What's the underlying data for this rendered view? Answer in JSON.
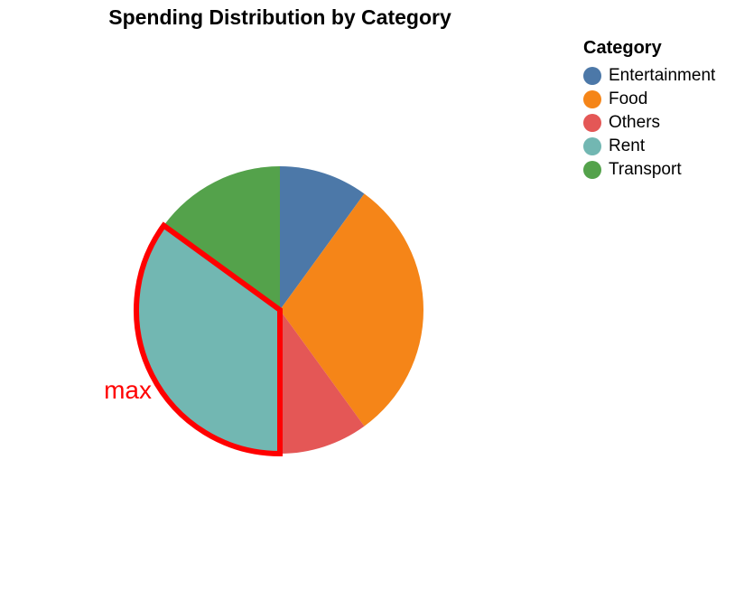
{
  "chart_data": {
    "type": "pie",
    "title": "Spending Distribution by Category",
    "legend_title": "Category",
    "legend_position": "top-right",
    "categories": [
      "Entertainment",
      "Food",
      "Others",
      "Rent",
      "Transport"
    ],
    "values": [
      10,
      30,
      10,
      35,
      15
    ],
    "colors": [
      "#4c78a8",
      "#f58518",
      "#e45756",
      "#72b7b2",
      "#54a24b"
    ],
    "annotation": {
      "text": "max",
      "target": "Rent",
      "color": "#ff0000"
    }
  }
}
